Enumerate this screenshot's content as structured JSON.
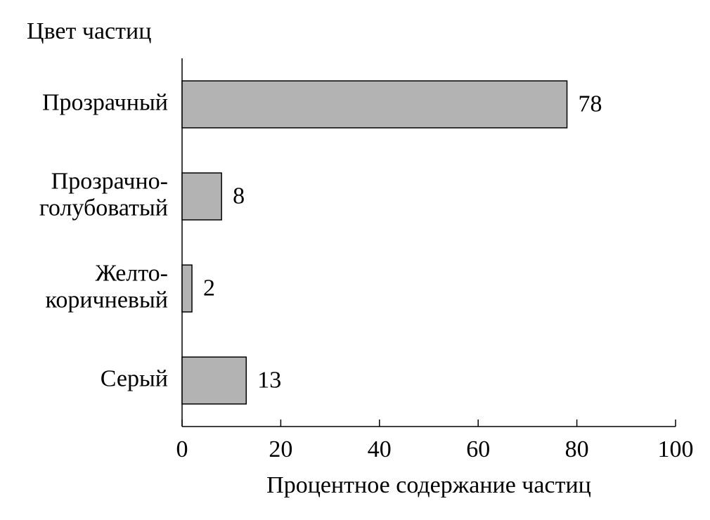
{
  "chart_data": {
    "type": "barh",
    "y_label": "Цвет частиц",
    "x_label": "Процентное содержание частиц",
    "categories": [
      [
        "Прозрачный"
      ],
      [
        "Прозрачно-",
        "голубоватый"
      ],
      [
        "Желто-",
        "коричневый"
      ],
      [
        "Серый"
      ]
    ],
    "values": [
      78,
      8,
      2,
      13
    ],
    "color": "#b3b3b3",
    "xlim": [
      0,
      100
    ],
    "xticks": [
      0,
      20,
      40,
      60,
      80,
      100
    ],
    "grid": false
  }
}
